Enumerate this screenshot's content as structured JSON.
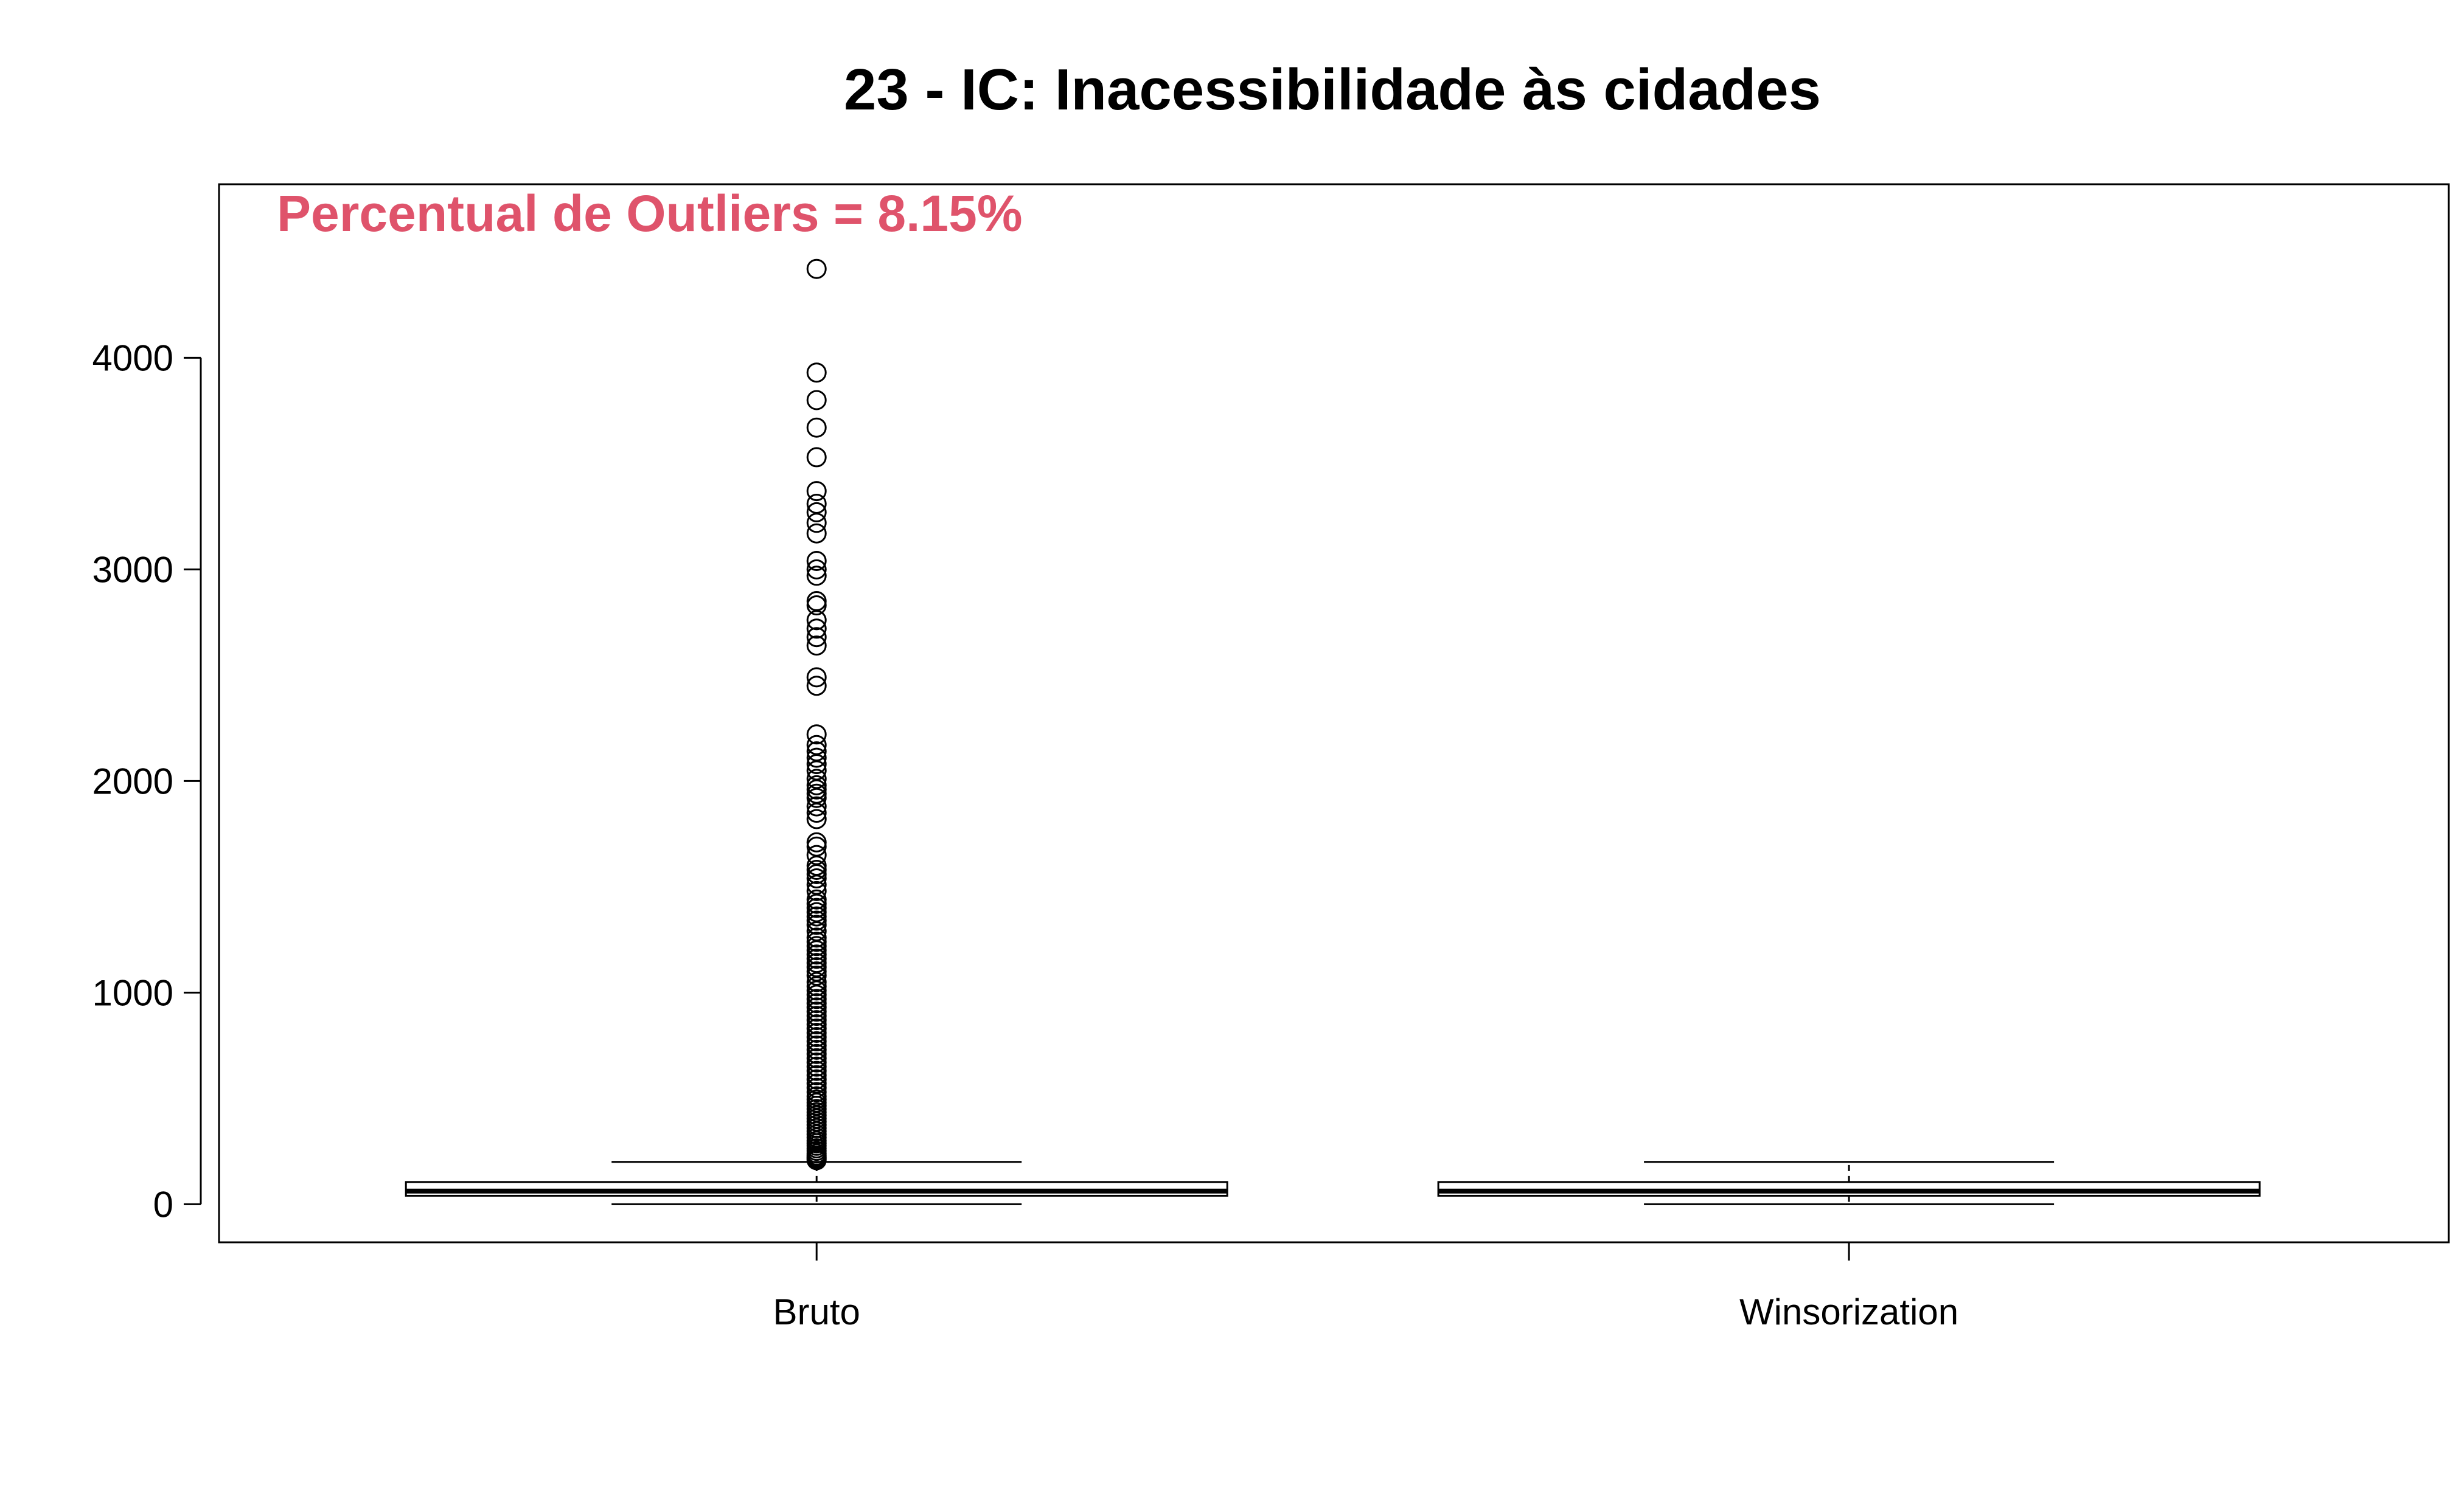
{
  "chart_data": {
    "type": "boxplot",
    "title": "23 - IC: Inacessibilidade às cidades",
    "annotation": "Percentual de Outliers = 8.15%",
    "annotation_color": "#DF536B",
    "ylim": [
      -180,
      4820
    ],
    "yticks": [
      0,
      1000,
      2000,
      3000,
      4000
    ],
    "ytick_labels": [
      "0",
      "1000",
      "2000",
      "3000",
      "4000"
    ],
    "categories": [
      "Bruto",
      "Winsorization"
    ],
    "boxes": [
      {
        "name": "Bruto",
        "whisker_low": 0,
        "q1": 40,
        "median": 62,
        "q3": 105,
        "whisker_high": 200,
        "outliers": [
          4420,
          3930,
          3800,
          3670,
          3530,
          3370,
          3310,
          3270,
          3220,
          3170,
          3040,
          3000,
          2970,
          2850,
          2830,
          2760,
          2720,
          2680,
          2640,
          2490,
          2450,
          2220,
          2170,
          2140,
          2110,
          2080,
          2050,
          2010,
          1980,
          1960,
          1940,
          1920,
          1880,
          1850,
          1820,
          1710,
          1690,
          1650,
          1600,
          1580,
          1560,
          1540,
          1510,
          1480,
          1440,
          1420,
          1400,
          1380,
          1360,
          1340,
          1320,
          1290,
          1260,
          1240,
          1220,
          1200,
          1180,
          1160,
          1140,
          1120,
          1100,
          1080,
          1050,
          1030,
          1010,
          990,
          970,
          950,
          930,
          910,
          890,
          870,
          850,
          830,
          810,
          790,
          770,
          750,
          730,
          710,
          690,
          670,
          650,
          630,
          610,
          590,
          570,
          550,
          530,
          510,
          495,
          480,
          465,
          450,
          435,
          420,
          405,
          390,
          375,
          360,
          345,
          330,
          315,
          300,
          288,
          276,
          264,
          252,
          240,
          230,
          222,
          215,
          208
        ]
      },
      {
        "name": "Winsorization",
        "whisker_low": 0,
        "q1": 40,
        "median": 62,
        "q3": 105,
        "whisker_high": 200,
        "outliers": []
      }
    ]
  }
}
